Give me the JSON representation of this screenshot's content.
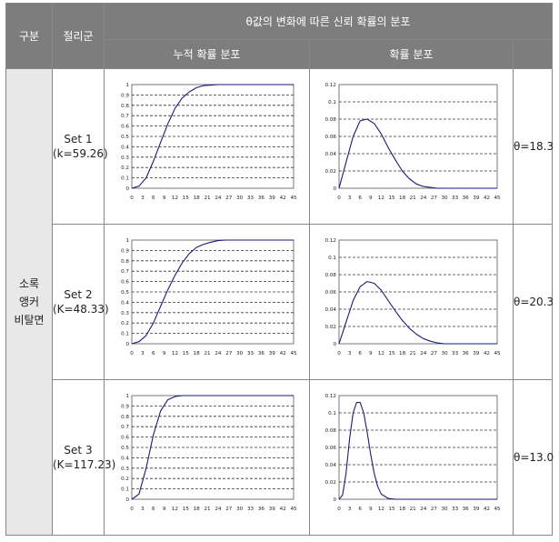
{
  "table": {
    "header": {
      "col_group": "구분",
      "col_set": "절리군",
      "col_main": "θ값의 변화에 따른 신뢰 확률의 분포",
      "sub_cdf": "누적 확률 분포",
      "sub_pdf": "확률 분포"
    },
    "group_lines": [
      "소록",
      "앵커",
      "비탈면"
    ],
    "rows": [
      {
        "set": "Set 1",
        "k": "(k=59.26)",
        "theta": "θ=18.3"
      },
      {
        "set": "Set 2",
        "k": "(K=48.33)",
        "theta": "θ=20.3"
      },
      {
        "set": "Set 3",
        "k": "(K=117.23)",
        "theta": "θ=13.0"
      }
    ]
  },
  "axes": {
    "x_ticks": [
      "0",
      "3",
      "6",
      "9",
      "12",
      "15",
      "18",
      "21",
      "24",
      "27",
      "30",
      "33",
      "36",
      "39",
      "42",
      "45"
    ],
    "cdf_y_ticks": [
      "0",
      "0.1",
      "0.2",
      "0.3",
      "0.4",
      "0.5",
      "0.6",
      "0.7",
      "0.8",
      "0.9",
      "1"
    ],
    "pdf_y_ticks": [
      "0",
      "0.02",
      "0.04",
      "0.06",
      "0.08",
      "0.1",
      "0.12"
    ]
  },
  "chart_data": [
    {
      "type": "line",
      "panel": "Set 1 누적 확률 분포",
      "x": [
        0,
        2,
        4,
        6,
        8,
        10,
        12,
        14,
        16,
        18,
        20,
        22,
        24,
        26,
        28,
        30,
        45
      ],
      "y": [
        0,
        0.02,
        0.1,
        0.26,
        0.44,
        0.62,
        0.77,
        0.87,
        0.93,
        0.97,
        0.99,
        0.995,
        1,
        1,
        1,
        1,
        1
      ],
      "xlim": [
        0,
        45
      ],
      "ylim": [
        0,
        1
      ],
      "grid": true,
      "line_color": "#1a1a7a"
    },
    {
      "type": "line",
      "panel": "Set 1 확률 분포",
      "x": [
        0,
        2,
        4,
        6,
        8,
        10,
        12,
        14,
        16,
        18,
        20,
        22,
        24,
        26,
        28,
        30,
        45
      ],
      "y": [
        0,
        0.03,
        0.06,
        0.078,
        0.08,
        0.075,
        0.063,
        0.047,
        0.033,
        0.02,
        0.011,
        0.005,
        0.002,
        0.001,
        0,
        0,
        0
      ],
      "xlim": [
        0,
        45
      ],
      "ylim": [
        0,
        0.12
      ],
      "grid": true,
      "line_color": "#1a1a7a"
    },
    {
      "type": "line",
      "panel": "Set 2 누적 확률 분포",
      "x": [
        0,
        2,
        4,
        6,
        8,
        10,
        12,
        14,
        16,
        18,
        20,
        22,
        24,
        26,
        28,
        30,
        45
      ],
      "y": [
        0,
        0.02,
        0.08,
        0.2,
        0.36,
        0.52,
        0.66,
        0.78,
        0.87,
        0.93,
        0.96,
        0.98,
        0.995,
        1,
        1,
        1,
        1
      ],
      "xlim": [
        0,
        45
      ],
      "ylim": [
        0,
        1
      ],
      "grid": true,
      "line_color": "#1a1a7a"
    },
    {
      "type": "line",
      "panel": "Set 2 확률 분포",
      "x": [
        0,
        2,
        4,
        6,
        8,
        10,
        12,
        14,
        16,
        18,
        20,
        22,
        24,
        26,
        28,
        30,
        32,
        45
      ],
      "y": [
        0,
        0.025,
        0.05,
        0.066,
        0.072,
        0.07,
        0.062,
        0.05,
        0.038,
        0.027,
        0.018,
        0.011,
        0.006,
        0.003,
        0.001,
        0,
        0,
        0
      ],
      "xlim": [
        0,
        45
      ],
      "ylim": [
        0,
        0.12
      ],
      "grid": true,
      "line_color": "#1a1a7a"
    },
    {
      "type": "line",
      "panel": "Set 3 누적 확률 분포",
      "x": [
        0,
        2,
        4,
        6,
        8,
        10,
        12,
        14,
        16,
        18,
        45
      ],
      "y": [
        0,
        0.05,
        0.3,
        0.62,
        0.85,
        0.96,
        0.99,
        1,
        1,
        1,
        1
      ],
      "xlim": [
        0,
        45
      ],
      "ylim": [
        0,
        1
      ],
      "grid": true,
      "line_color": "#1a1a7a"
    },
    {
      "type": "line",
      "panel": "Set 3 확률 분포",
      "x": [
        0,
        1,
        2,
        3,
        4,
        5,
        6,
        7,
        8,
        9,
        10,
        11,
        12,
        14,
        16,
        18,
        45
      ],
      "y": [
        0,
        0.005,
        0.03,
        0.07,
        0.1,
        0.112,
        0.112,
        0.1,
        0.078,
        0.052,
        0.03,
        0.015,
        0.006,
        0.001,
        0,
        0,
        0
      ],
      "xlim": [
        0,
        45
      ],
      "ylim": [
        0,
        0.12
      ],
      "grid": true,
      "line_color": "#1a1a7a"
    }
  ]
}
